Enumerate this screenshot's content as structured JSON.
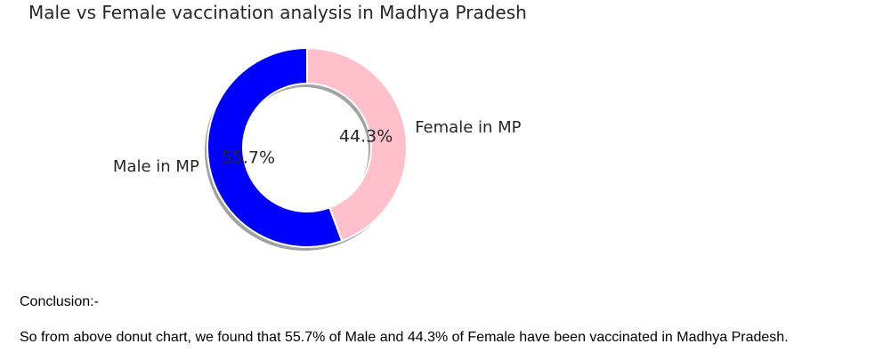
{
  "chart_data": {
    "type": "pie",
    "style": "donut",
    "title": "Male vs Female vaccination analysis in Madhya Pradesh",
    "categories": [
      "Male in MP",
      "Female in MP"
    ],
    "values": [
      55.7,
      44.3
    ],
    "percent_labels": [
      "55.7%",
      "44.3%"
    ],
    "colors": [
      "#0000ff",
      "#ffc0cb"
    ],
    "legend": "none"
  },
  "conclusion": {
    "heading": "Conclusion:-",
    "text": "So from above donut chart, we found that 55.7% of Male and 44.3% of Female have been vaccinated in Madhya Pradesh."
  }
}
